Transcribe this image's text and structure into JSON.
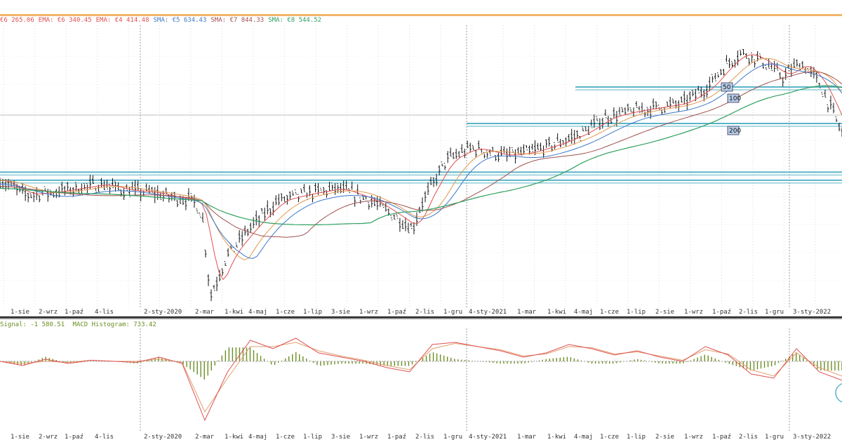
{
  "colors": {
    "ema_short": "#e05050",
    "ema_mid": "#e09a50",
    "sma_a": "#3c78c8",
    "sma_b": "#a05050",
    "sma_c": "#30a060",
    "support": "#5ab4c8",
    "macd": "#e05050",
    "signal": "#e0a070",
    "histogram": "#6b8e23"
  },
  "legend_top": [
    {
      "text": "€6 265.06",
      "color": "#e05050"
    },
    {
      "text": "EMA: €6 340.45",
      "color": "#e05050"
    },
    {
      "text": "EMA: €4 414.48",
      "color": "#e05050"
    },
    {
      "text": "SMA: €5 634.43",
      "color": "#3c78c8"
    },
    {
      "text": "SMA: €7 844.33",
      "color": "#a05050"
    },
    {
      "text": "SMA: €8 544.52",
      "color": "#30a060"
    }
  ],
  "legend_bottom": {
    "signal": "Signal: -1 580.51",
    "histogram": "MACD Histogram: 733.42"
  },
  "chart_data": [
    {
      "type": "candlestick",
      "x_tick_labels": [
        "1-sie",
        "2-wrz",
        "1-paź",
        "4-lis",
        "2-sty-2020",
        "2-mar",
        "1-kwi",
        "4-maj",
        "1-cze",
        "1-lip",
        "3-sie",
        "1-wrz",
        "1-paź",
        "2-lis",
        "1-gru",
        "4-sty-2021",
        "1-mar",
        "1-kwi",
        "4-maj",
        "1-cze",
        "1-lip",
        "2-sie",
        "1-wrz",
        "1-paź",
        "2-lis",
        "1-gru",
        "3-sty-2022"
      ],
      "ma_badges": [
        "50",
        "100",
        "200"
      ],
      "price_path": [
        [
          0,
          0.62
        ],
        [
          0.03,
          0.55
        ],
        [
          0.06,
          0.56
        ],
        [
          0.09,
          0.58
        ],
        [
          0.12,
          0.6
        ],
        [
          0.15,
          0.57
        ],
        [
          0.18,
          0.56
        ],
        [
          0.2,
          0.54
        ],
        [
          0.23,
          0.52
        ],
        [
          0.24,
          0.45
        ],
        [
          0.25,
          0.05
        ],
        [
          0.27,
          0.25
        ],
        [
          0.3,
          0.4
        ],
        [
          0.33,
          0.52
        ],
        [
          0.36,
          0.55
        ],
        [
          0.4,
          0.58
        ],
        [
          0.44,
          0.52
        ],
        [
          0.47,
          0.44
        ],
        [
          0.49,
          0.38
        ],
        [
          0.5,
          0.5
        ],
        [
          0.53,
          0.72
        ],
        [
          0.56,
          0.78
        ],
        [
          0.6,
          0.74
        ],
        [
          0.63,
          0.76
        ],
        [
          0.66,
          0.8
        ],
        [
          0.69,
          0.85
        ],
        [
          0.72,
          0.93
        ],
        [
          0.75,
          0.96
        ],
        [
          0.78,
          0.98
        ],
        [
          0.81,
          1.0
        ],
        [
          0.84,
          1.08
        ],
        [
          0.86,
          1.18
        ],
        [
          0.88,
          1.25
        ],
        [
          0.9,
          1.22
        ],
        [
          0.93,
          1.13
        ],
        [
          0.95,
          1.2
        ],
        [
          0.97,
          1.12
        ],
        [
          0.99,
          0.95
        ],
        [
          1.0,
          0.85
        ]
      ],
      "support_levels": [
        0.62,
        0.66,
        0.9,
        1.08
      ]
    },
    {
      "type": "line",
      "x_tick_labels": [
        "1-sie",
        "2-wrz",
        "1-paź",
        "4-lis",
        "2-sty-2020",
        "2-mar",
        "1-kwi",
        "4-maj",
        "1-cze",
        "1-lip",
        "3-sie",
        "1-wrz",
        "1-paź",
        "2-lis",
        "1-gru",
        "4-sty-2021",
        "1-mar",
        "1-kwi",
        "4-maj",
        "1-cze",
        "1-lip",
        "2-sie",
        "1-wrz",
        "1-paź",
        "2-lis",
        "1-gru",
        "3-sty-2022"
      ],
      "series": [
        {
          "values": [
            0,
            -0.2,
            0.1,
            -0.1,
            0.05,
            0.0,
            -0.05,
            0.2,
            -0.1,
            -2.8,
            -0.5,
            1.0,
            0.6,
            1.1,
            0.4,
            0.2,
            0.0,
            -0.3,
            -0.5,
            0.8,
            0.9,
            0.7,
            0.5,
            0.2,
            0.4,
            0.8,
            0.6,
            0.3,
            0.5,
            0.2,
            0.0,
            0.7,
            0.3,
            -0.6,
            -0.8,
            0.6,
            -0.5,
            -0.9
          ]
        },
        {
          "values": [
            0,
            -0.1,
            0.0,
            -0.05,
            0.05,
            0.0,
            0.0,
            0.1,
            -0.05,
            -2.4,
            -0.8,
            0.7,
            0.7,
            0.9,
            0.5,
            0.25,
            0.05,
            -0.2,
            -0.4,
            0.6,
            0.85,
            0.7,
            0.55,
            0.25,
            0.35,
            0.7,
            0.65,
            0.35,
            0.45,
            0.25,
            0.05,
            0.55,
            0.35,
            -0.4,
            -0.7,
            0.4,
            -0.3,
            -0.7
          ]
        }
      ]
    }
  ]
}
